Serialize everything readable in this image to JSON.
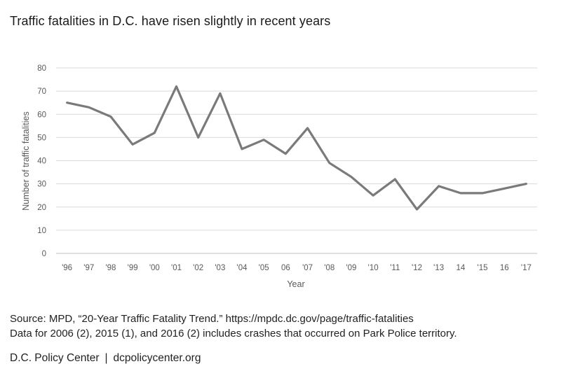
{
  "chart_data": {
    "type": "line",
    "title": "Traffic fatalities in D.C. have risen slightly in recent years",
    "xlabel": "Year",
    "ylabel": "Number of traffic fatalities",
    "ylim": [
      0,
      80
    ],
    "yticks": [
      "0",
      "10",
      "20",
      "30",
      "40",
      "50",
      "60",
      "70",
      "80"
    ],
    "categories": [
      "'96",
      "'97",
      "'98",
      "'99",
      "'00",
      "'01",
      "'02",
      "'03",
      "'04",
      "'05",
      "06",
      "'07",
      "'08",
      "'09",
      "'10",
      "'11",
      "'12",
      "'13",
      "14",
      "'15",
      "16",
      "'17"
    ],
    "values": [
      65,
      63,
      59,
      47,
      52,
      72,
      50,
      69,
      45,
      49,
      43,
      54,
      39,
      33,
      25,
      32,
      19,
      29,
      26,
      26,
      28,
      30
    ],
    "grid": true,
    "legend": "none",
    "line_color": "#7a7a7a"
  },
  "footer": {
    "source_line1": "Source: MPD, “20-Year Traffic Fatality Trend.” https://mpdc.dc.gov/page/traffic-fatalities",
    "source_line2": "Data for 2006 (2), 2015 (1), and 2016 (2) includes crashes that occurred on Park Police territory.",
    "brand_name": "D.C. Policy Center",
    "brand_sep": "|",
    "brand_url": "dcpolicycenter.org"
  }
}
